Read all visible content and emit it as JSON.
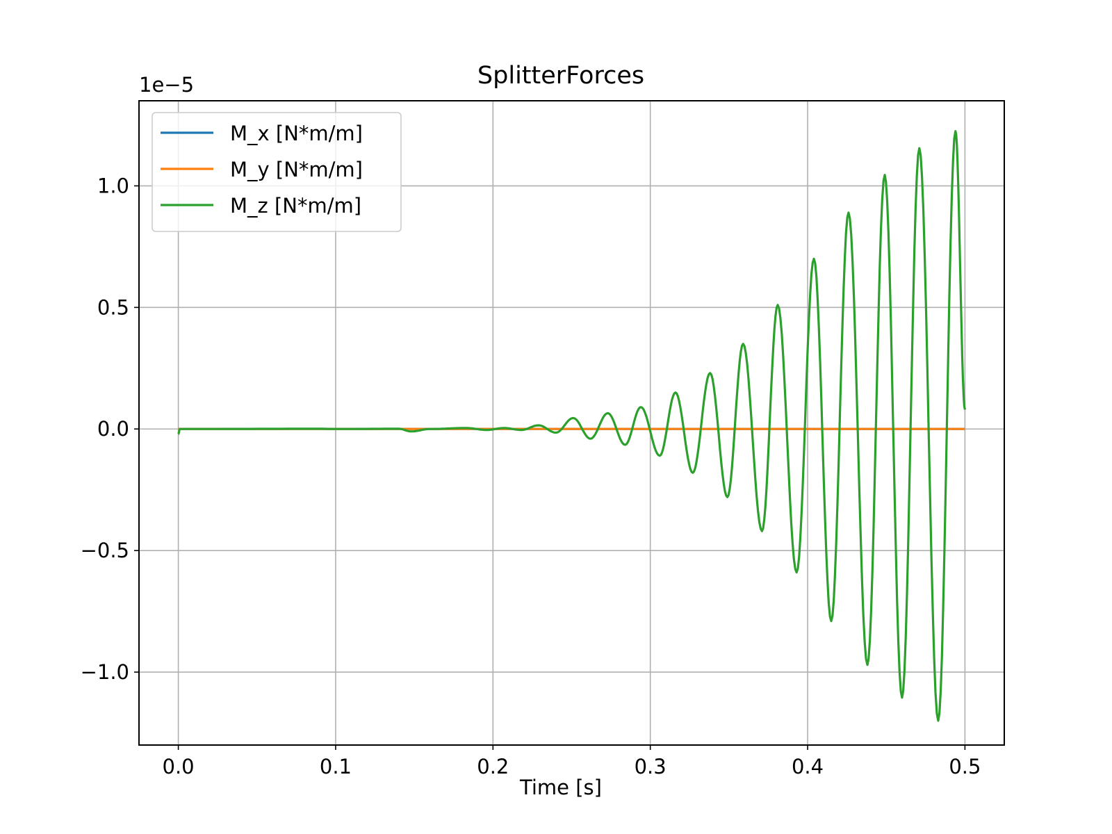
{
  "chart_data": {
    "type": "line",
    "title": "SplitterForces",
    "xlabel": "Time [s]",
    "ylabel": "",
    "y_offset_label": "1e−5",
    "xlim": [
      -0.025,
      0.525
    ],
    "ylim": [
      -1.3e-05,
      1.35e-05
    ],
    "x_ticks": [
      0.0,
      0.1,
      0.2,
      0.3,
      0.4,
      0.5
    ],
    "x_tick_labels": [
      "0.0",
      "0.1",
      "0.2",
      "0.3",
      "0.4",
      "0.5"
    ],
    "y_ticks": [
      -1e-05,
      -5e-06,
      0.0,
      5e-06,
      1e-05
    ],
    "y_tick_labels": [
      "−1.0",
      "−0.5",
      "0.0",
      "0.5",
      "1.0"
    ],
    "grid": true,
    "legend_position": "top-left",
    "series": [
      {
        "name": "M_x [N*m/m]",
        "color": "#1f77b4",
        "x": [
          0.0,
          0.5
        ],
        "y": [
          0.0,
          0.0
        ]
      },
      {
        "name": "M_y [N*m/m]",
        "color": "#ff7f0e",
        "x": [
          0.0,
          0.5
        ],
        "y": [
          0.0,
          0.0
        ]
      },
      {
        "name": "M_z [N*m/m]",
        "color": "#2ca02c",
        "peaks": [
          [
            0.0,
            -2e-07
          ],
          [
            0.001,
            0.0
          ],
          [
            0.09,
            1e-08
          ],
          [
            0.1,
            0.0
          ],
          [
            0.14,
            1e-08
          ],
          [
            0.148,
            -1e-07
          ],
          [
            0.16,
            0.0
          ],
          [
            0.183,
            4e-08
          ],
          [
            0.196,
            -4e-08
          ],
          [
            0.207,
            4e-08
          ],
          [
            0.218,
            -4e-08
          ],
          [
            0.229,
            1.5e-07
          ],
          [
            0.24,
            -1.5e-07
          ],
          [
            0.251,
            4.5e-07
          ],
          [
            0.262,
            -4e-07
          ],
          [
            0.273,
            6.5e-07
          ],
          [
            0.284,
            -6.5e-07
          ],
          [
            0.294,
            9e-07
          ],
          [
            0.306,
            -1.1e-06
          ],
          [
            0.316,
            1.5e-06
          ],
          [
            0.327,
            -1.8e-06
          ],
          [
            0.338,
            2.3e-06
          ],
          [
            0.349,
            -2.8e-06
          ],
          [
            0.359,
            3.5e-06
          ],
          [
            0.371,
            -4.2e-06
          ],
          [
            0.381,
            5.1e-06
          ],
          [
            0.393,
            -5.9e-06
          ],
          [
            0.404,
            7e-06
          ],
          [
            0.415,
            -7.9e-06
          ],
          [
            0.426,
            8.9e-06
          ],
          [
            0.438,
            -9.7e-06
          ],
          [
            0.449,
            1.045e-05
          ],
          [
            0.46,
            -1.105e-05
          ],
          [
            0.471,
            1.155e-05
          ],
          [
            0.483,
            -1.2e-05
          ],
          [
            0.494,
            1.225e-05
          ],
          [
            0.5,
            8e-07
          ]
        ]
      }
    ]
  }
}
